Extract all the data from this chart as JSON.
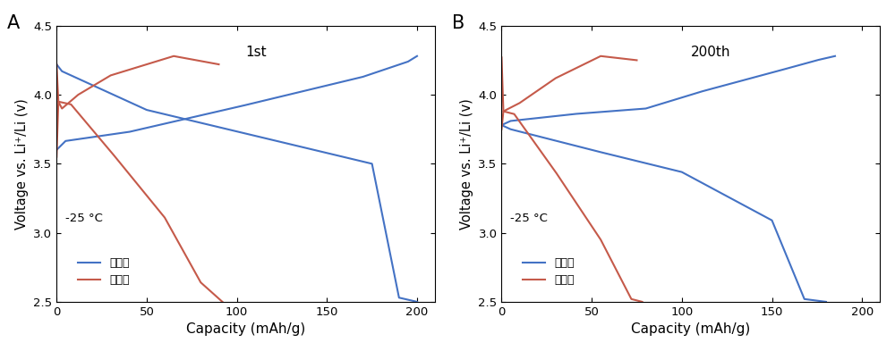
{
  "panel_A_label": "A",
  "panel_B_label": "B",
  "cycle_A": "1st",
  "cycle_B": "200th",
  "temp_label": "-25 °C",
  "legend_blue": "实施例",
  "legend_red": "对比例",
  "ylabel": "Voltage vs. Li⁺/Li (v)",
  "xlabel": "Capacity (mAh/g)",
  "xlim": [
    0,
    210
  ],
  "ylim": [
    2.5,
    4.5
  ],
  "xticks": [
    0,
    50,
    100,
    150,
    200
  ],
  "yticks": [
    2.5,
    3.0,
    3.5,
    4.0,
    4.5
  ],
  "blue_color": "#4472C4",
  "red_color": "#C55A4A",
  "bg_color": "#FFFFFF",
  "linewidth": 1.5
}
